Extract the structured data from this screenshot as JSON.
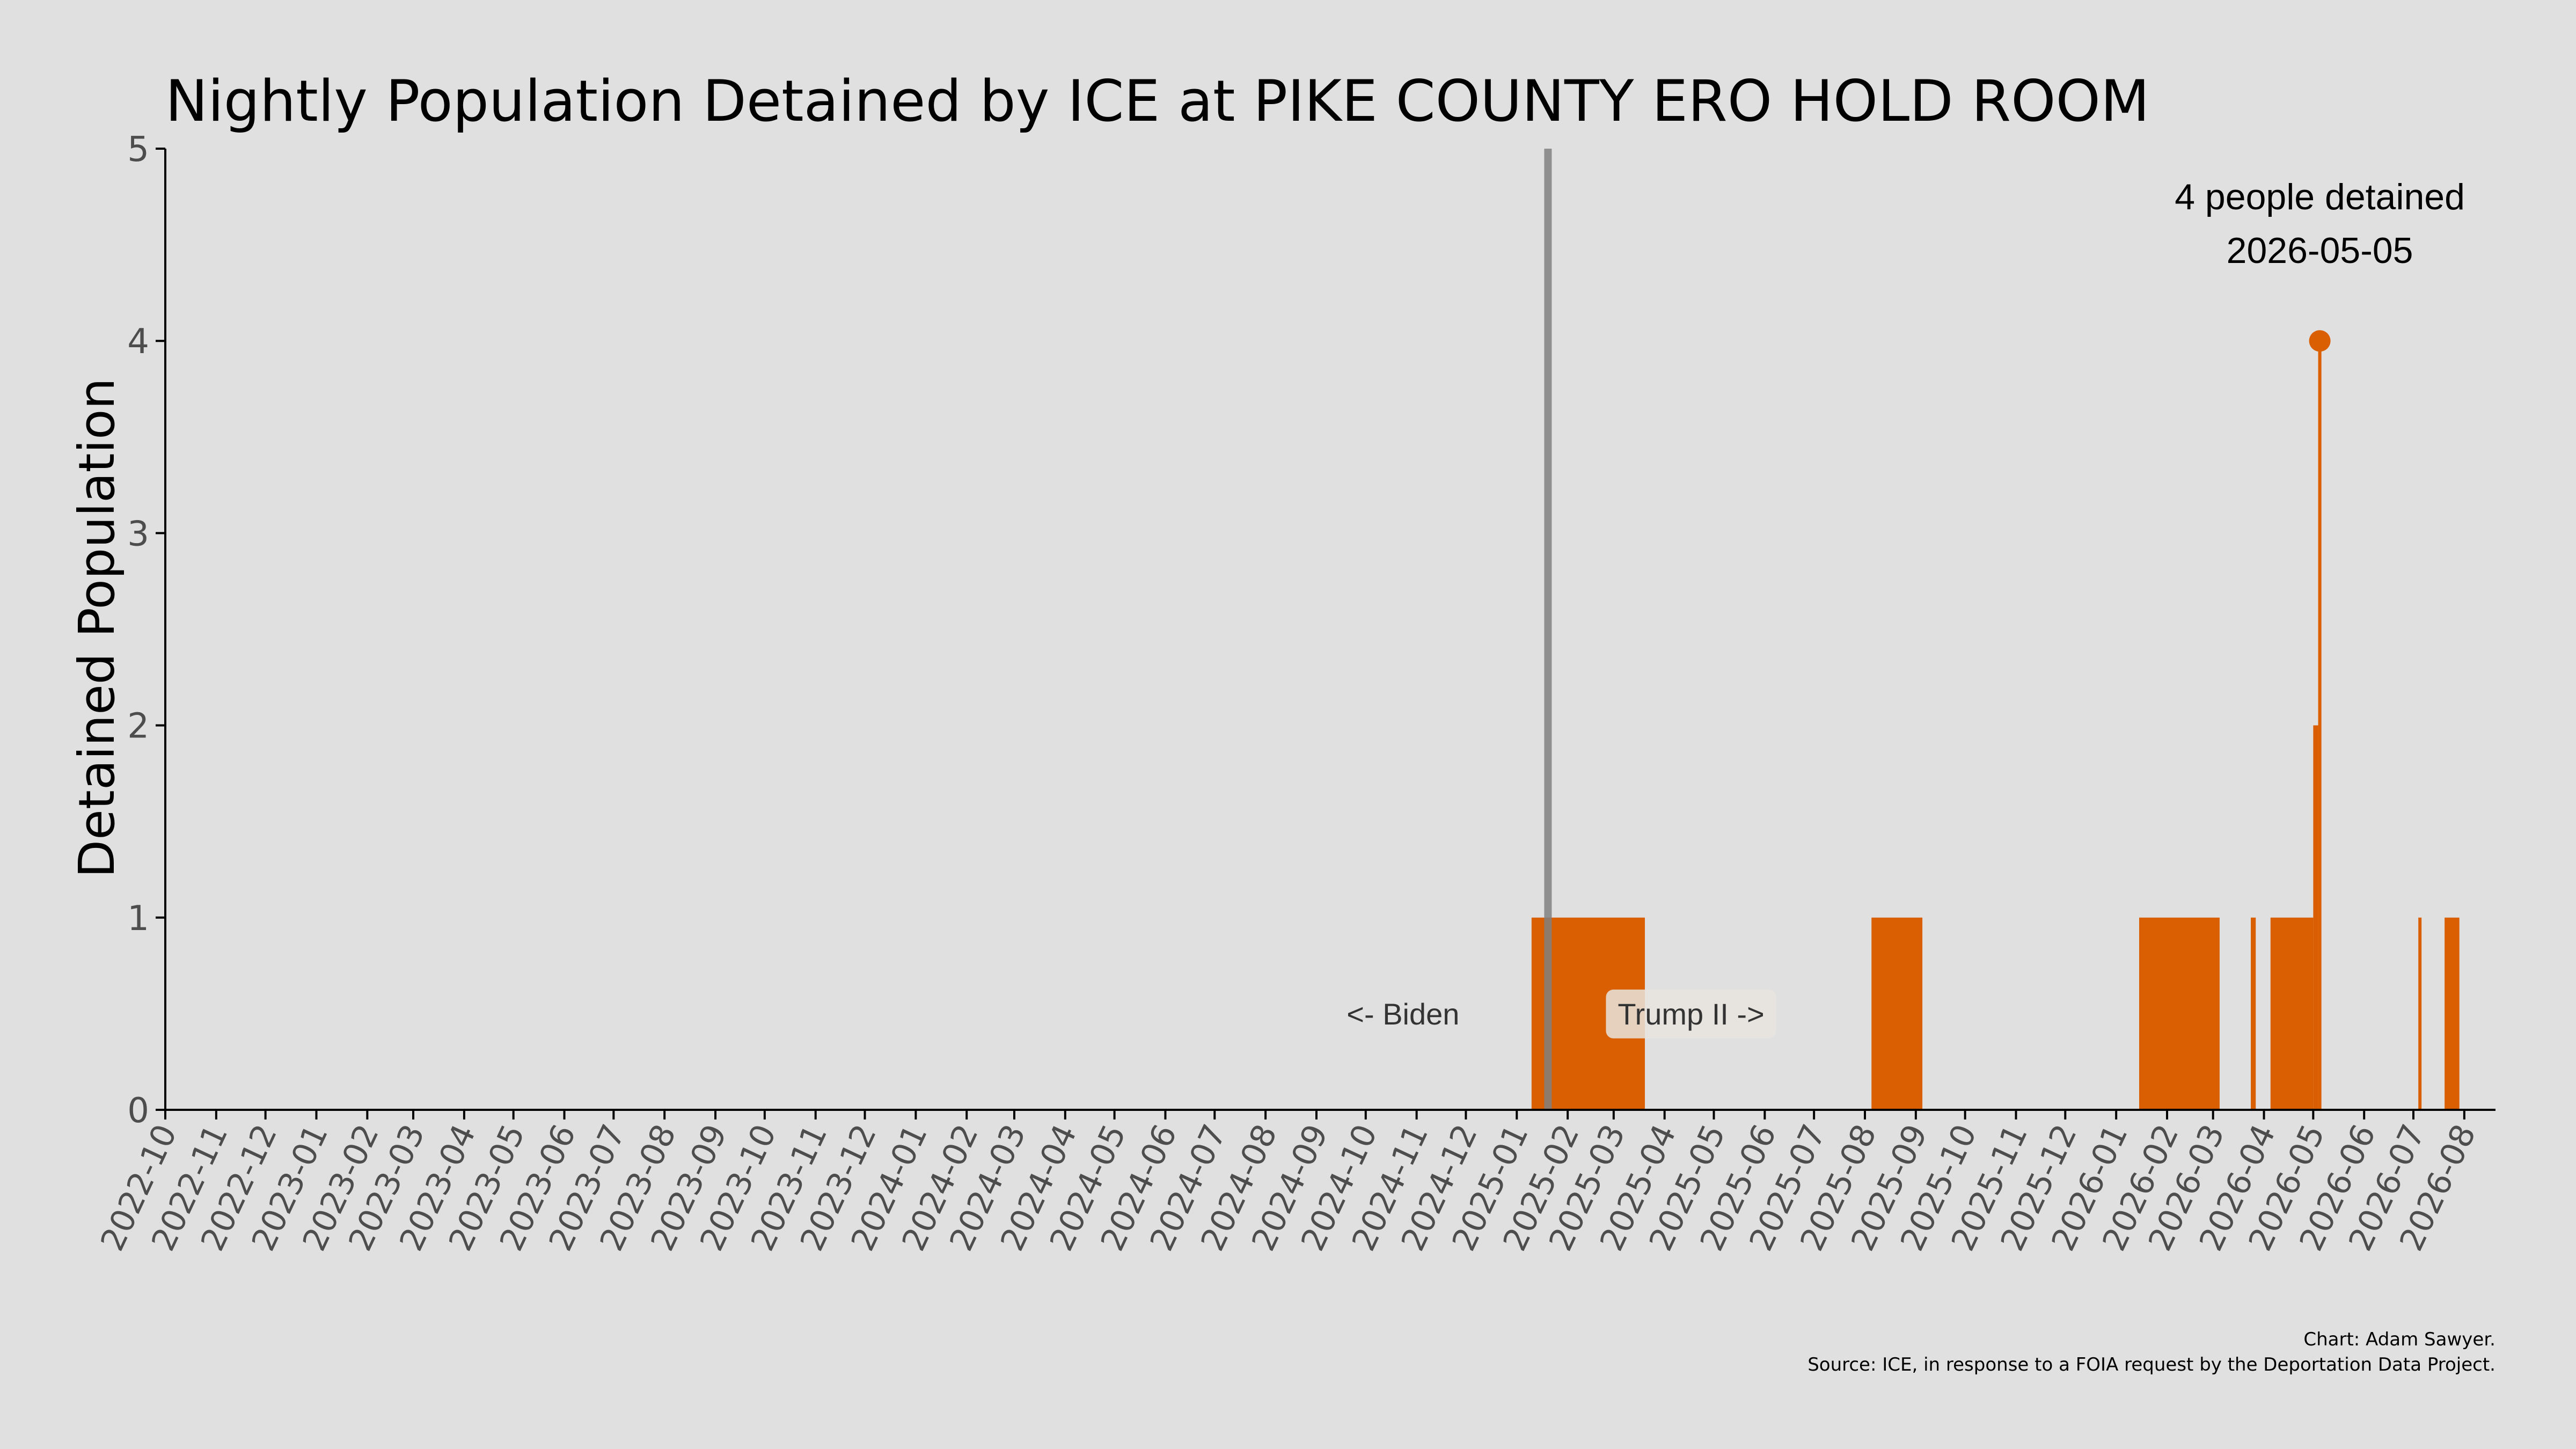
{
  "chart_data": {
    "type": "area",
    "title": "Nightly Population Detained by ICE at PIKE COUNTY ERO HOLD ROOM",
    "xlabel": "",
    "ylabel": "Detained Population",
    "ylim": [
      0,
      5
    ],
    "yticks": [
      0,
      1,
      2,
      3,
      4,
      5
    ],
    "xlim": [
      "2022-10-01",
      "2026-08-20"
    ],
    "xtick_labels": [
      "2022-10",
      "2022-11",
      "2022-12",
      "2023-01",
      "2023-02",
      "2023-03",
      "2023-04",
      "2023-05",
      "2023-06",
      "2023-07",
      "2023-08",
      "2023-09",
      "2023-10",
      "2023-11",
      "2023-12",
      "2024-01",
      "2024-02",
      "2024-03",
      "2024-04",
      "2024-05",
      "2024-06",
      "2024-07",
      "2024-08",
      "2024-09",
      "2024-10",
      "2024-11",
      "2024-12",
      "2025-01",
      "2025-02",
      "2025-03",
      "2025-04",
      "2025-05",
      "2025-06",
      "2025-07",
      "2025-08",
      "2025-09",
      "2025-10",
      "2025-11",
      "2025-12",
      "2026-01",
      "2026-02",
      "2026-03",
      "2026-04",
      "2026-05",
      "2026-06",
      "2026-07",
      "2026-08"
    ],
    "series": [
      {
        "color": "#d95f02",
        "segments": [
          {
            "start": "2025-01-10",
            "end": "2025-03-20",
            "value": 1
          },
          {
            "start": "2025-08-05",
            "end": "2025-09-05",
            "value": 1
          },
          {
            "start": "2026-01-15",
            "end": "2026-03-05",
            "value": 1
          },
          {
            "start": "2026-03-24",
            "end": "2026-03-27",
            "value": 1
          },
          {
            "start": "2026-04-05",
            "end": "2026-05-01",
            "value": 1
          },
          {
            "start": "2026-05-01",
            "end": "2026-05-04",
            "value": 2
          },
          {
            "start": "2026-05-04",
            "end": "2026-05-06",
            "value": 4
          },
          {
            "start": "2026-07-04",
            "end": "2026-07-05",
            "value": 1
          },
          {
            "start": "2026-07-20",
            "end": "2026-07-29",
            "value": 1
          }
        ]
      }
    ],
    "peak": {
      "date": "2026-05-05",
      "value": 4,
      "label_line1": "4 people detained",
      "label_line2": "2026-05-05"
    },
    "divider": {
      "date": "2025-01-20",
      "left_label": "<- Biden",
      "right_label": "Trump II ->"
    },
    "grid": false,
    "legend": "none"
  },
  "credits": {
    "line1": "Chart: Adam Sawyer.",
    "line2": "Source: ICE, in response to a FOIA request by the Deportation Data Project."
  },
  "colors": {
    "background": "#e0e0e0",
    "fill": "#d95f02",
    "divider": "#808080",
    "era_label_box": "#e8e4df"
  }
}
